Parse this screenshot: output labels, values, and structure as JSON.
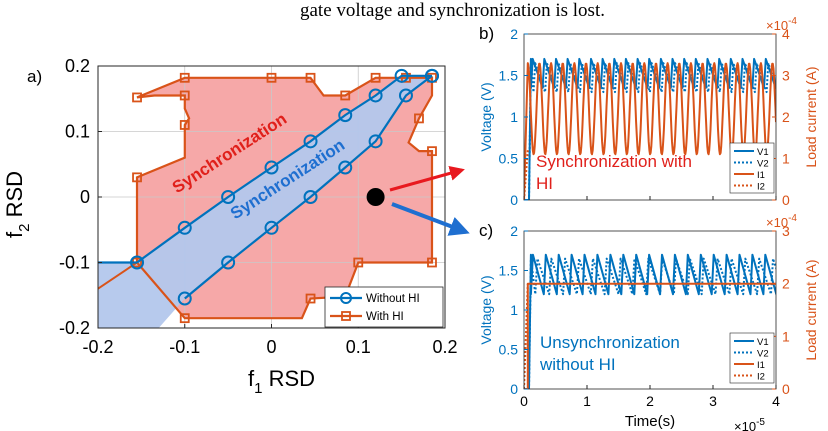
{
  "header_text": "gate voltage and synchronization is lost.",
  "chart_data": [
    {
      "id": "a",
      "panel_label": "a)",
      "type": "area",
      "xlabel": "f",
      "xlabel_sub": "1",
      "xlabel_suffix": " RSD",
      "ylabel": "f",
      "ylabel_sub": "2",
      "ylabel_suffix": " RSD",
      "xlim": [
        -0.2,
        0.2
      ],
      "ylim": [
        -0.2,
        0.2
      ],
      "x_ticks": [
        -0.2,
        -0.1,
        0,
        0.1,
        0.2
      ],
      "y_ticks": [
        -0.2,
        -0.1,
        0,
        0.1,
        0.2
      ],
      "x_tick_labels": [
        "-0.2",
        "-0.1",
        "0",
        "0.1",
        "0.2"
      ],
      "y_tick_labels": [
        "-0.2",
        "-0.1",
        "0",
        "0.1",
        "0.2"
      ],
      "grid": true,
      "legend_position": "bottom-right",
      "colors": {
        "without_hi": "#0072BD",
        "without_hi_fill": "#b3c7ec",
        "with_hi": "#D95319",
        "with_hi_fill": "#f6a8a8",
        "operating_point": "#000000"
      },
      "series": [
        {
          "name": "Without HI",
          "marker": "circle",
          "upper": [
            {
              "x": -0.155,
              "y": -0.1
            },
            {
              "x": -0.1,
              "y": -0.047
            },
            {
              "x": -0.05,
              "y": 0.0
            },
            {
              "x": 0.0,
              "y": 0.045
            },
            {
              "x": 0.045,
              "y": 0.085
            },
            {
              "x": 0.085,
              "y": 0.125
            },
            {
              "x": 0.12,
              "y": 0.155
            },
            {
              "x": 0.15,
              "y": 0.185
            },
            {
              "x": 0.185,
              "y": 0.185
            }
          ],
          "lower": [
            {
              "x": -0.1,
              "y": -0.155
            },
            {
              "x": -0.05,
              "y": -0.1
            },
            {
              "x": 0.0,
              "y": -0.047
            },
            {
              "x": 0.045,
              "y": 0.0
            },
            {
              "x": 0.085,
              "y": 0.045
            },
            {
              "x": 0.12,
              "y": 0.085
            },
            {
              "x": 0.155,
              "y": 0.155
            },
            {
              "x": 0.185,
              "y": 0.185
            }
          ],
          "left_extension": [
            {
              "x": -0.2,
              "y": -0.1
            },
            {
              "x": -0.155,
              "y": -0.1
            }
          ]
        },
        {
          "name": "With HI",
          "marker": "square",
          "boundary": [
            {
              "x": -0.155,
              "y": -0.1
            },
            {
              "x": -0.155,
              "y": 0.03
            },
            {
              "x": -0.1,
              "y": 0.06
            },
            {
              "x": -0.1,
              "y": 0.11
            },
            {
              "x": -0.095,
              "y": 0.12
            },
            {
              "x": -0.1,
              "y": 0.135
            },
            {
              "x": -0.1,
              "y": 0.155
            },
            {
              "x": -0.135,
              "y": 0.155
            },
            {
              "x": -0.155,
              "y": 0.152
            },
            {
              "x": -0.1,
              "y": 0.182
            },
            {
              "x": 0.0,
              "y": 0.182
            },
            {
              "x": 0.045,
              "y": 0.182
            },
            {
              "x": 0.06,
              "y": 0.155
            },
            {
              "x": 0.085,
              "y": 0.155
            },
            {
              "x": 0.12,
              "y": 0.182
            },
            {
              "x": 0.155,
              "y": 0.182
            },
            {
              "x": 0.185,
              "y": 0.182
            },
            {
              "x": 0.185,
              "y": 0.155
            },
            {
              "x": 0.17,
              "y": 0.12
            },
            {
              "x": 0.158,
              "y": 0.083
            },
            {
              "x": 0.17,
              "y": 0.07
            },
            {
              "x": 0.185,
              "y": 0.07
            },
            {
              "x": 0.185,
              "y": -0.1
            },
            {
              "x": 0.1,
              "y": -0.1
            },
            {
              "x": 0.085,
              "y": -0.152
            },
            {
              "x": 0.045,
              "y": -0.155
            },
            {
              "x": 0.035,
              "y": -0.185
            },
            {
              "x": -0.1,
              "y": -0.185
            },
            {
              "x": -0.155,
              "y": -0.1
            }
          ],
          "markers": [
            {
              "x": -0.155,
              "y": -0.1
            },
            {
              "x": -0.155,
              "y": 0.03
            },
            {
              "x": -0.1,
              "y": 0.11
            },
            {
              "x": -0.1,
              "y": 0.155
            },
            {
              "x": -0.155,
              "y": 0.152
            },
            {
              "x": -0.1,
              "y": 0.182
            },
            {
              "x": 0.0,
              "y": 0.182
            },
            {
              "x": 0.045,
              "y": 0.182
            },
            {
              "x": 0.085,
              "y": 0.155
            },
            {
              "x": 0.12,
              "y": 0.182
            },
            {
              "x": 0.155,
              "y": 0.182
            },
            {
              "x": 0.185,
              "y": 0.182
            },
            {
              "x": 0.17,
              "y": 0.12
            },
            {
              "x": 0.185,
              "y": 0.07
            },
            {
              "x": 0.185,
              "y": -0.1
            },
            {
              "x": 0.1,
              "y": -0.1
            },
            {
              "x": 0.085,
              "y": -0.152
            },
            {
              "x": 0.045,
              "y": -0.155
            },
            {
              "x": -0.1,
              "y": -0.185
            }
          ],
          "lower_left_extension": [
            {
              "x": -0.2,
              "y": -0.14
            },
            {
              "x": -0.155,
              "y": -0.1
            }
          ]
        }
      ],
      "operating_point": {
        "x": 0.12,
        "y": 0.0
      },
      "annotations": [
        {
          "text": "Synchronization",
          "color": "#e0201b",
          "anchor": {
            "x": -0.045,
            "y": 0.06
          },
          "angle": -33
        },
        {
          "text": "Synchronization",
          "color": "#1f6fd0",
          "anchor": {
            "x": 0.022,
            "y": 0.02
          },
          "angle": -33
        }
      ]
    },
    {
      "id": "b",
      "panel_label": "b)",
      "type": "line",
      "ylabel_left": "Voltage (V)",
      "ylabel_right": "Load current (A)",
      "ylim_left": [
        0,
        2
      ],
      "ylim_right": [
        0,
        4
      ],
      "x_range_scaled": [
        0,
        4
      ],
      "x_exponent_label": "×10",
      "x_exponent": "-5",
      "right_exponent_label": "×10",
      "right_exponent": "-4",
      "left_ticks": [
        "0",
        "0.5",
        "1",
        "1.5",
        "2"
      ],
      "right_ticks": [
        "0",
        "1",
        "2",
        "3",
        "4"
      ],
      "legend_position": "right",
      "legend": [
        "V1",
        "V2",
        "I1",
        "I2"
      ],
      "annotation": [
        "Synchronization with",
        "HI"
      ],
      "annotation_color": "#e0201b",
      "series": [
        {
          "name": "V1",
          "axis": "left",
          "style": "solid",
          "color": "#0072BD",
          "pattern": "sawtooth",
          "period": 0.185,
          "phase": 0.0,
          "low": 1.35,
          "high": 1.7,
          "start": 0.08
        },
        {
          "name": "V2",
          "axis": "left",
          "style": "dotted",
          "color": "#0072BD",
          "pattern": "sawtooth",
          "period": 0.185,
          "phase": 0.04,
          "low": 1.3,
          "high": 1.65,
          "start": 0.08
        },
        {
          "name": "I1",
          "axis": "right",
          "style": "solid",
          "color": "#D95319",
          "pattern": "sine",
          "period": 0.185,
          "phase": 0.0,
          "low": 1.1,
          "high": 3.3,
          "start": 0.06
        },
        {
          "name": "I2",
          "axis": "right",
          "style": "dotted",
          "color": "#D95319",
          "pattern": "ramp",
          "start": 0.0,
          "end": 0.06,
          "low": 0.0,
          "high": 1.2
        }
      ]
    },
    {
      "id": "c",
      "panel_label": "c)",
      "type": "line",
      "xlabel": "Time(s)",
      "ylabel_left": "Voltage (V)",
      "ylabel_right": "Load current (A)",
      "ylim_left": [
        0,
        2
      ],
      "ylim_right": [
        0,
        3
      ],
      "x_range_scaled": [
        0,
        4
      ],
      "x_ticks": [
        "0",
        "1",
        "2",
        "3",
        "4"
      ],
      "x_exponent_label": "×10",
      "x_exponent": "-5",
      "right_exponent_label": "×10",
      "right_exponent": "-4",
      "left_ticks": [
        "0",
        "0.5",
        "1",
        "1.5",
        "2"
      ],
      "right_ticks": [
        "0",
        "1",
        "2",
        "3"
      ],
      "legend_position": "bottom-right",
      "legend": [
        "V1",
        "V2",
        "I1",
        "I2"
      ],
      "annotation": [
        "Unsynchronization",
        "without HI"
      ],
      "annotation_color": "#0072BD",
      "series": [
        {
          "name": "V1",
          "axis": "left",
          "style": "solid",
          "color": "#0072BD",
          "pattern": "sawtooth",
          "period": 0.205,
          "phase": 0.0,
          "low": 1.2,
          "high": 1.7,
          "start": 0.08
        },
        {
          "name": "V2",
          "axis": "left",
          "style": "dotted",
          "color": "#0072BD",
          "pattern": "sawtooth",
          "period": 0.22,
          "phase": 0.07,
          "low": 1.2,
          "high": 1.65,
          "start": 0.08
        },
        {
          "name": "I1",
          "axis": "right",
          "style": "solid",
          "color": "#D95319",
          "pattern": "step",
          "start": 0.06,
          "value": 2.0
        },
        {
          "name": "I2",
          "axis": "right",
          "style": "dotted",
          "color": "#D95319",
          "pattern": "ramp",
          "start": 0.0,
          "end": 0.06,
          "low": 0.0,
          "high": 2.0
        }
      ]
    }
  ]
}
